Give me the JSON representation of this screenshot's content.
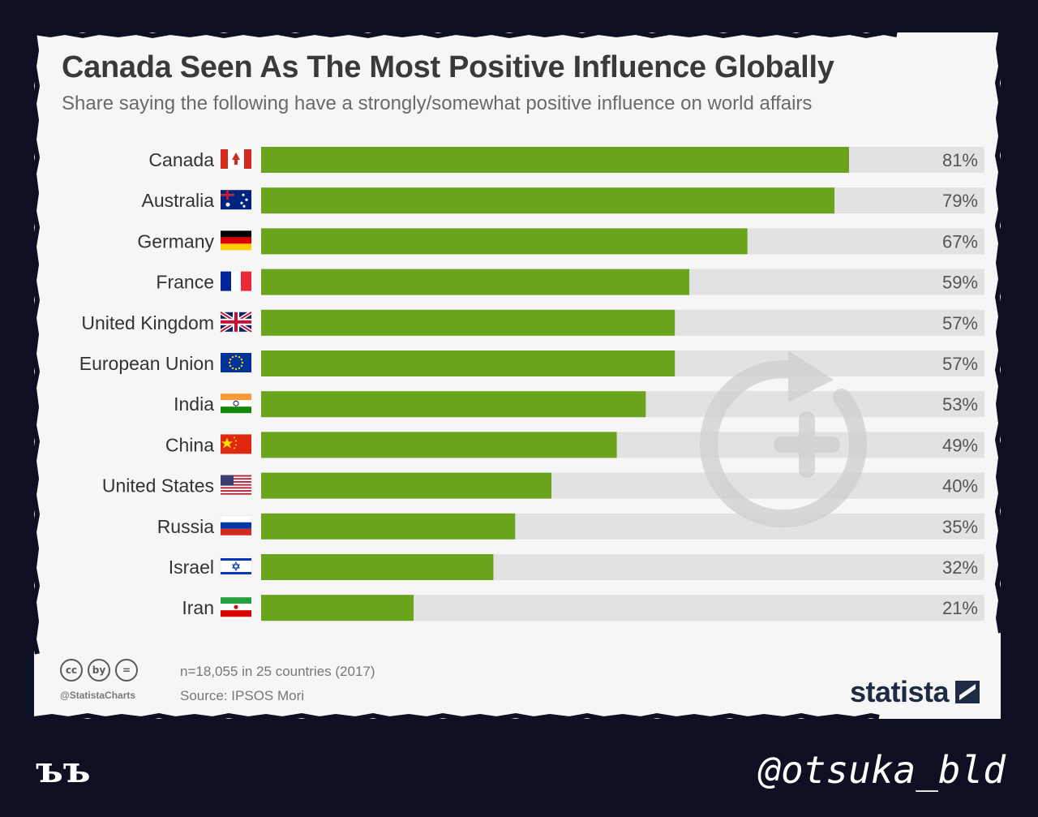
{
  "colors": {
    "bar": "#6aa31c",
    "track": "#e2e2e2",
    "label": "#333333",
    "value": "#555555",
    "watermark": "#cfcfcf"
  },
  "chart_data": {
    "type": "bar",
    "orientation": "horizontal",
    "title": "Canada Seen As The Most Positive Influence Globally",
    "subtitle": "Share saying the following have a strongly/somewhat positive influence on world affairs",
    "categories": [
      "Canada",
      "Australia",
      "Germany",
      "France",
      "United Kingdom",
      "European Union",
      "India",
      "China",
      "United States",
      "Russia",
      "Israel",
      "Iran"
    ],
    "flags": [
      "canada-flag-icon",
      "australia-flag-icon",
      "germany-flag-icon",
      "france-flag-icon",
      "united-kingdom-flag-icon",
      "european-union-flag-icon",
      "india-flag-icon",
      "china-flag-icon",
      "united-states-flag-icon",
      "russia-flag-icon",
      "israel-flag-icon",
      "iran-flag-icon"
    ],
    "values": [
      81,
      79,
      67,
      59,
      57,
      57,
      53,
      49,
      40,
      35,
      32,
      21
    ],
    "value_labels": [
      "81%",
      "79%",
      "67%",
      "59%",
      "57%",
      "57%",
      "53%",
      "49%",
      "40%",
      "35%",
      "32%",
      "21%"
    ],
    "xlim": [
      0,
      100
    ],
    "grid": false,
    "legend": "none"
  },
  "footer": {
    "cc_icons": [
      "cc",
      "by",
      "="
    ],
    "handle": "@StatistaCharts",
    "note": "n=18,055 in 25 countries (2017)",
    "source": "Source: IPSOS Mori",
    "brand": "statista"
  },
  "overlay": {
    "left_mark": "ъъ",
    "right_handle": "@otsuka_bld"
  }
}
